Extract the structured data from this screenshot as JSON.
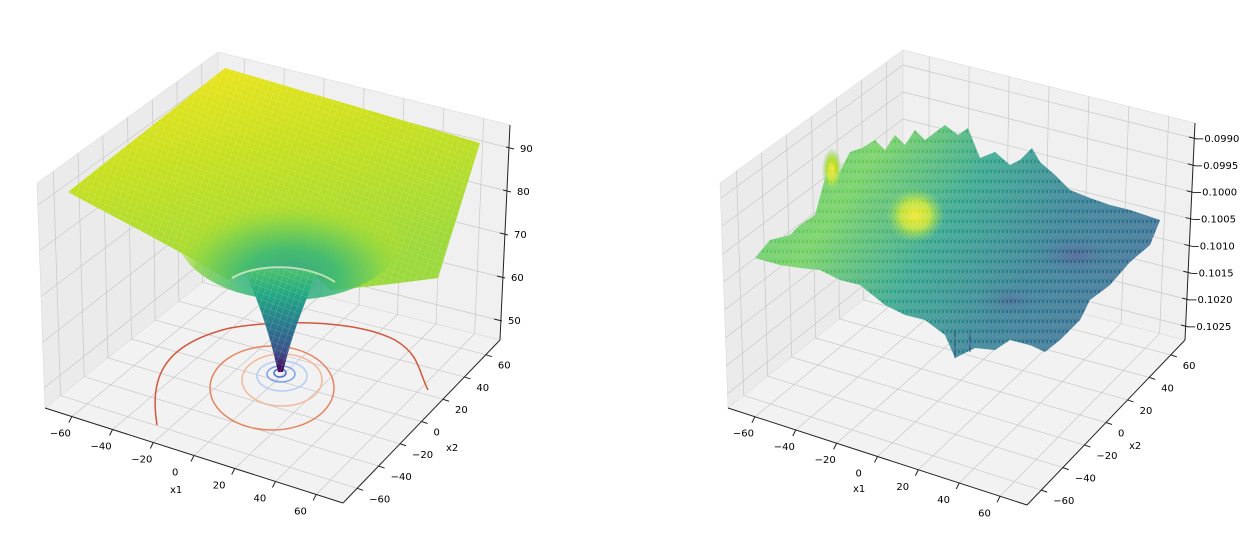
{
  "figure": {
    "panels": 2,
    "colormap": "viridis"
  },
  "chart_data": [
    {
      "type": "surface3d",
      "title": "",
      "xlabel": "x1",
      "ylabel": "x2",
      "zlabel": "",
      "x_ticks": [
        "−60",
        "−40",
        "−20",
        "0",
        "20",
        "40",
        "60"
      ],
      "y_ticks": [
        "−60",
        "−40",
        "−20",
        "0",
        "20",
        "40",
        "60"
      ],
      "z_ticks": [
        "50",
        "60",
        "70",
        "80",
        "90"
      ],
      "xlim": [
        -75,
        75
      ],
      "ylim": [
        -75,
        75
      ],
      "zlim": [
        45,
        95
      ],
      "description": "Funnel-shaped surface (Ackley-like): flat plateau near z≈90 at the edges descending sharply to a minimum near z≈45 at x1=0, x2=0",
      "surface_samples": [
        {
          "x1": -75,
          "x2": 75,
          "z": 92
        },
        {
          "x1": 75,
          "x2": 75,
          "z": 90
        },
        {
          "x1": -75,
          "x2": -75,
          "z": 90
        },
        {
          "x1": 75,
          "x2": -75,
          "z": 88
        },
        {
          "x1": -40,
          "x2": 0,
          "z": 82
        },
        {
          "x1": 0,
          "x2": 40,
          "z": 80
        },
        {
          "x1": -20,
          "x2": 0,
          "z": 70
        },
        {
          "x1": -10,
          "x2": 0,
          "z": 62
        },
        {
          "x1": 0,
          "x2": 0,
          "z": 45
        }
      ],
      "contours": {
        "colormap": "coolwarm",
        "levels_description": "Projected contour rings on floor, blue near center, orange/red farther out",
        "rings": [
          {
            "radius": 3,
            "color": "#4a6fd8"
          },
          {
            "radius": 8,
            "color": "#7b9ff0"
          },
          {
            "radius": 14,
            "color": "#b5cdf6"
          },
          {
            "radius": 22,
            "color": "#f2b89a"
          },
          {
            "radius": 35,
            "color": "#e8835f"
          },
          {
            "radius": 60,
            "color": "#d6553a"
          }
        ]
      }
    },
    {
      "type": "surface3d",
      "title": "",
      "xlabel": "x1",
      "ylabel": "x2",
      "zlabel": "",
      "x_ticks": [
        "−60",
        "−40",
        "−20",
        "0",
        "20",
        "40",
        "60"
      ],
      "y_ticks": [
        "−60",
        "−40",
        "−20",
        "0",
        "20",
        "40",
        "60"
      ],
      "z_ticks": [
        "−0.0990",
        "−0.0995",
        "−0.1000",
        "−0.1005",
        "−0.1010",
        "−0.1015",
        "−0.1020",
        "−0.1025"
      ],
      "xlim": [
        -75,
        75
      ],
      "ylim": [
        -75,
        75
      ],
      "zlim": [
        -0.1028,
        -0.0987
      ],
      "description": "Noisy rough surface with small-amplitude fluctuations around z≈−0.1005; a higher yellow bump near x1≈−20, x2≈10 and darker (lower) regions toward positive x1",
      "surface_samples": [
        {
          "x1": -20,
          "x2": 10,
          "z": -0.0995
        },
        {
          "x1": -60,
          "x2": 40,
          "z": -0.0998
        },
        {
          "x1": 0,
          "x2": 0,
          "z": -0.1005
        },
        {
          "x1": 40,
          "x2": -20,
          "z": -0.1012
        },
        {
          "x1": 60,
          "x2": -60,
          "z": -0.1015
        },
        {
          "x1": 10,
          "x2": -50,
          "z": -0.1022
        }
      ]
    }
  ]
}
